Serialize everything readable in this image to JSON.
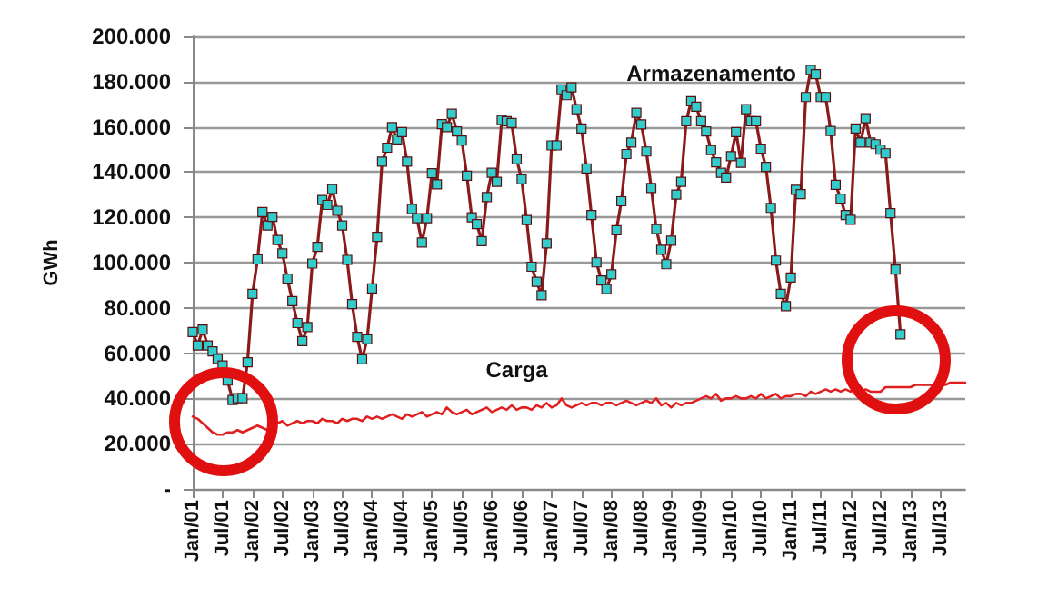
{
  "chart_data": {
    "type": "line",
    "ylabel": "GWh",
    "categories": [
      "Jan/01",
      null,
      null,
      null,
      null,
      null,
      "Jul/01",
      null,
      null,
      null,
      null,
      null,
      "Jan/02",
      null,
      null,
      null,
      null,
      null,
      "Jul/02",
      null,
      null,
      null,
      null,
      null,
      "Jan/03",
      null,
      null,
      null,
      null,
      null,
      "Jul/03",
      null,
      null,
      null,
      null,
      null,
      "Jan/04",
      null,
      null,
      null,
      null,
      null,
      "Jul/04",
      null,
      null,
      null,
      null,
      null,
      "Jan/05",
      null,
      null,
      null,
      null,
      null,
      "Jul/05",
      null,
      null,
      null,
      null,
      null,
      "Jan/06",
      null,
      null,
      null,
      null,
      null,
      "Jul/06",
      null,
      null,
      null,
      null,
      null,
      "Jan/07",
      null,
      null,
      null,
      null,
      null,
      "Jul/07",
      null,
      null,
      null,
      null,
      null,
      "Jan/08",
      null,
      null,
      null,
      null,
      null,
      "Jul/08",
      null,
      null,
      null,
      null,
      null,
      "Jan/09",
      null,
      null,
      null,
      null,
      null,
      "Jul/09",
      null,
      null,
      null,
      null,
      null,
      "Jan/10",
      null,
      null,
      null,
      null,
      null,
      "Jul/10",
      null,
      null,
      null,
      null,
      null,
      "Jan/11",
      null,
      null,
      null,
      null,
      null,
      "Jul/11",
      null,
      null,
      null,
      null,
      null,
      "Jan/12",
      null,
      null,
      null,
      null,
      null,
      "Jul/12",
      null,
      null,
      null,
      null,
      null,
      "Jan/13",
      null,
      null,
      null,
      null,
      null,
      "Jul/13",
      null,
      null,
      null,
      null,
      null
    ],
    "series": [
      {
        "name": "Armazenamento",
        "color": "#33cccc",
        "marker": "square",
        "values": [
          69300,
          63400,
          70400,
          63400,
          60800,
          57500,
          54600,
          47900,
          39300,
          40100,
          40100,
          56000,
          86200,
          101400,
          122300,
          116400,
          120200,
          110000,
          104100,
          92900,
          83000,
          73300,
          65300,
          71500,
          99600,
          107000,
          127700,
          125500,
          132500,
          122900,
          116400,
          101200,
          81700,
          67200,
          57300,
          66100,
          88600,
          111400,
          144600,
          150800,
          159900,
          154500,
          157700,
          144600,
          123700,
          119600,
          108900,
          119600,
          139500,
          134600,
          161200,
          159900,
          165800,
          158000,
          154000,
          138400,
          120000,
          117000,
          109500,
          129000,
          139700,
          135700,
          163000,
          162500,
          161700,
          145600,
          136800,
          118800,
          98200,
          91500,
          85600,
          108500,
          151800,
          151800,
          176600,
          174000,
          177500,
          167800,
          159300,
          141600,
          121000,
          100100,
          92100,
          88300,
          94800,
          114300,
          127100,
          148000,
          153100,
          166200,
          161100,
          149100,
          133000,
          114800,
          105700,
          99300,
          109700,
          130100,
          135700,
          162500,
          171300,
          168900,
          162500,
          158000,
          149700,
          144300,
          139700,
          137600,
          147000,
          157700,
          144100,
          167800,
          162500,
          162500,
          150400,
          142300,
          124200,
          100900,
          86200,
          80800,
          93400,
          132200,
          130300,
          173200,
          185200,
          183300,
          173200,
          173200,
          158200,
          134400,
          128300,
          121000,
          118900,
          159300,
          153100,
          163800,
          153100,
          152300,
          149900,
          148300,
          121800,
          96900,
          68300,
          null,
          null,
          null,
          null,
          null,
          null,
          null,
          null,
          null,
          null,
          null,
          null,
          null
        ]
      },
      {
        "name": "Carga",
        "color": "#e02020",
        "marker": "none",
        "values": [
          32000,
          31000,
          29000,
          27000,
          25000,
          24000,
          24000,
          25000,
          25000,
          26000,
          25000,
          26000,
          27000,
          28000,
          27000,
          26000,
          28000,
          29000,
          30000,
          28000,
          29000,
          30000,
          29000,
          30000,
          30000,
          29000,
          31000,
          30000,
          30000,
          29000,
          31000,
          30000,
          31000,
          31000,
          30000,
          32000,
          31000,
          32000,
          31000,
          32000,
          33000,
          32000,
          31000,
          33000,
          32000,
          33000,
          34000,
          32000,
          33000,
          34000,
          33000,
          36000,
          34000,
          33000,
          34000,
          35000,
          33000,
          34000,
          35000,
          36000,
          34000,
          35000,
          36000,
          35000,
          37000,
          35000,
          36000,
          36000,
          35000,
          37000,
          36000,
          38000,
          36000,
          37000,
          40000,
          37000,
          36000,
          37000,
          38000,
          37000,
          38000,
          38000,
          37000,
          38000,
          38000,
          37000,
          38000,
          39000,
          38000,
          37000,
          38000,
          39000,
          38000,
          40000,
          37000,
          38000,
          36000,
          38000,
          37000,
          38000,
          38000,
          39000,
          40000,
          41000,
          40000,
          42000,
          39000,
          40000,
          40000,
          41000,
          40000,
          40000,
          41000,
          40000,
          42000,
          40000,
          41000,
          42000,
          40000,
          41000,
          41000,
          42000,
          42000,
          41000,
          43000,
          42000,
          43000,
          44000,
          43000,
          44000,
          43000,
          44000,
          43000,
          44000,
          43000,
          44000,
          43000,
          43000,
          43000,
          45000,
          45000,
          45000,
          45000,
          45000,
          45000,
          46000,
          46000,
          46000,
          46000,
          46000,
          46000,
          46000,
          47000,
          47000,
          47000,
          47000
        ]
      }
    ],
    "ylim": [
      0,
      200000
    ],
    "yticks": [
      {
        "value": 0,
        "label": "-"
      },
      {
        "value": 20000,
        "label": "20.000"
      },
      {
        "value": 40000,
        "label": "40.000"
      },
      {
        "value": 60000,
        "label": "60.000"
      },
      {
        "value": 80000,
        "label": "80.000"
      },
      {
        "value": 100000,
        "label": "100.000"
      },
      {
        "value": 120000,
        "label": "120.000"
      },
      {
        "value": 140000,
        "label": "140.000"
      },
      {
        "value": 160000,
        "label": "160.000"
      },
      {
        "value": 180000,
        "label": "180.000"
      },
      {
        "value": 200000,
        "label": "200.000"
      }
    ],
    "grid": "y",
    "legend": false
  }
}
